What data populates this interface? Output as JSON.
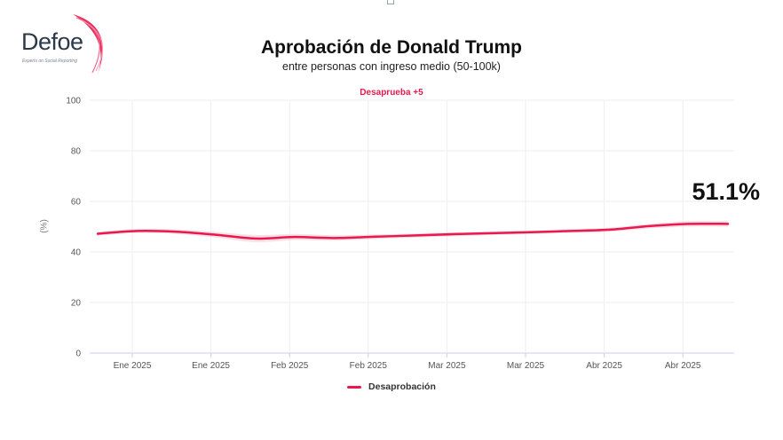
{
  "logo": {
    "name": "Defoe",
    "tagline": "Experts on Social Reporting"
  },
  "chart_data": {
    "type": "line",
    "title": "Aprobación de Donald Trump",
    "subtitle": "entre personas con ingreso medio (50-100k)",
    "annotation": "Desaprueba +5",
    "callout": "51.1%",
    "xlabel": "",
    "ylabel": "(%)",
    "ylim": [
      0,
      100
    ],
    "yticks": [
      0,
      20,
      40,
      60,
      80,
      100
    ],
    "xtick_labels": [
      "Ene 2025",
      "Ene 2025",
      "Feb 2025",
      "Feb 2025",
      "Mar 2025",
      "Mar 2025",
      "Abr 2025",
      "Abr 2025"
    ],
    "grid": true,
    "legend_position": "bottom-center",
    "series": [
      {
        "name": "Desaprobación",
        "color": "#e8194e",
        "band_color": "#f7c9d6",
        "values": [
          47.2,
          48.3,
          48.0,
          46.8,
          45.3,
          45.9,
          45.5,
          46.0,
          46.5,
          47.0,
          47.4,
          47.8,
          48.3,
          48.8,
          50.2,
          51.1,
          51.1
        ],
        "lower": [
          46.4,
          47.5,
          47.1,
          45.7,
          43.9,
          44.7,
          44.5,
          45.1,
          45.7,
          46.2,
          46.7,
          47.1,
          47.6,
          48.0,
          49.3,
          50.0,
          50.0
        ],
        "upper": [
          48.0,
          49.1,
          48.9,
          47.9,
          46.7,
          47.1,
          46.6,
          46.9,
          47.3,
          47.8,
          48.1,
          48.5,
          49.0,
          49.6,
          51.1,
          52.2,
          52.2
        ]
      }
    ]
  }
}
